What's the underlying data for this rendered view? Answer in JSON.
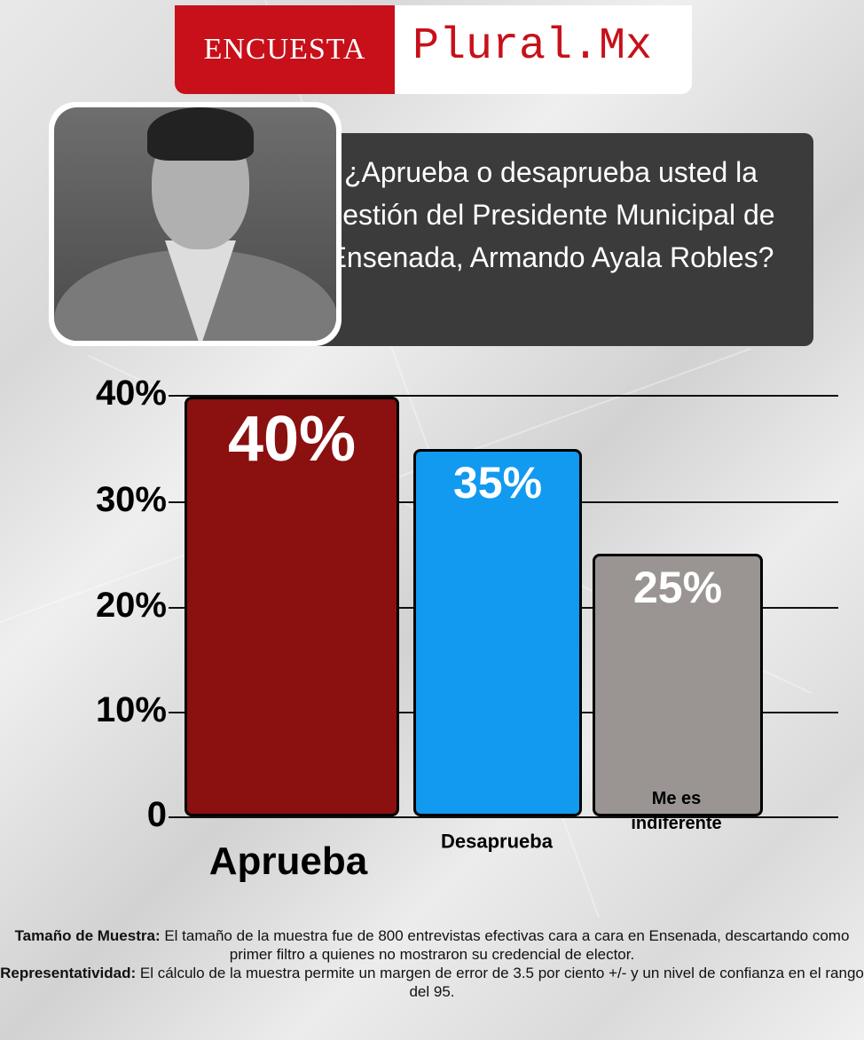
{
  "brand": {
    "label": "ENCUESTA",
    "name": "Plural.Mx",
    "color": "#c8101a"
  },
  "question": "¿Aprueba o desaprueba usted la gestión del Presidente Municipal de Ensenada, Armando Ayala Robles?",
  "chart_data": {
    "type": "bar",
    "title": "¿Aprueba o desaprueba usted la gestión del Presidente Municipal de Ensenada, Armando Ayala Robles?",
    "categories": [
      "Aprueba",
      "Desaprueba",
      "Me es indiferente"
    ],
    "values": [
      40,
      35,
      25
    ],
    "data_labels": [
      "40%",
      "35%",
      "25%"
    ],
    "colors": [
      "#8b1010",
      "#119af0",
      "#9a9593"
    ],
    "yticks": [
      "0",
      "10%",
      "20%",
      "30%",
      "40%"
    ],
    "ylim": [
      0,
      40
    ],
    "grid": true
  },
  "notes": {
    "sample_label": "Tamaño de Muestra:",
    "sample_text": " El tamaño de la muestra fue de 800 entrevistas efectivas cara a cara en Ensenada, descartando como primer filtro a quienes no mostraron su credencial de elector.",
    "rep_label": "Representatividad:",
    "rep_text": " El cálculo de la muestra permite un margen de error de 3.5 por ciento +/- y un nivel de confianza en el rango del 95."
  }
}
